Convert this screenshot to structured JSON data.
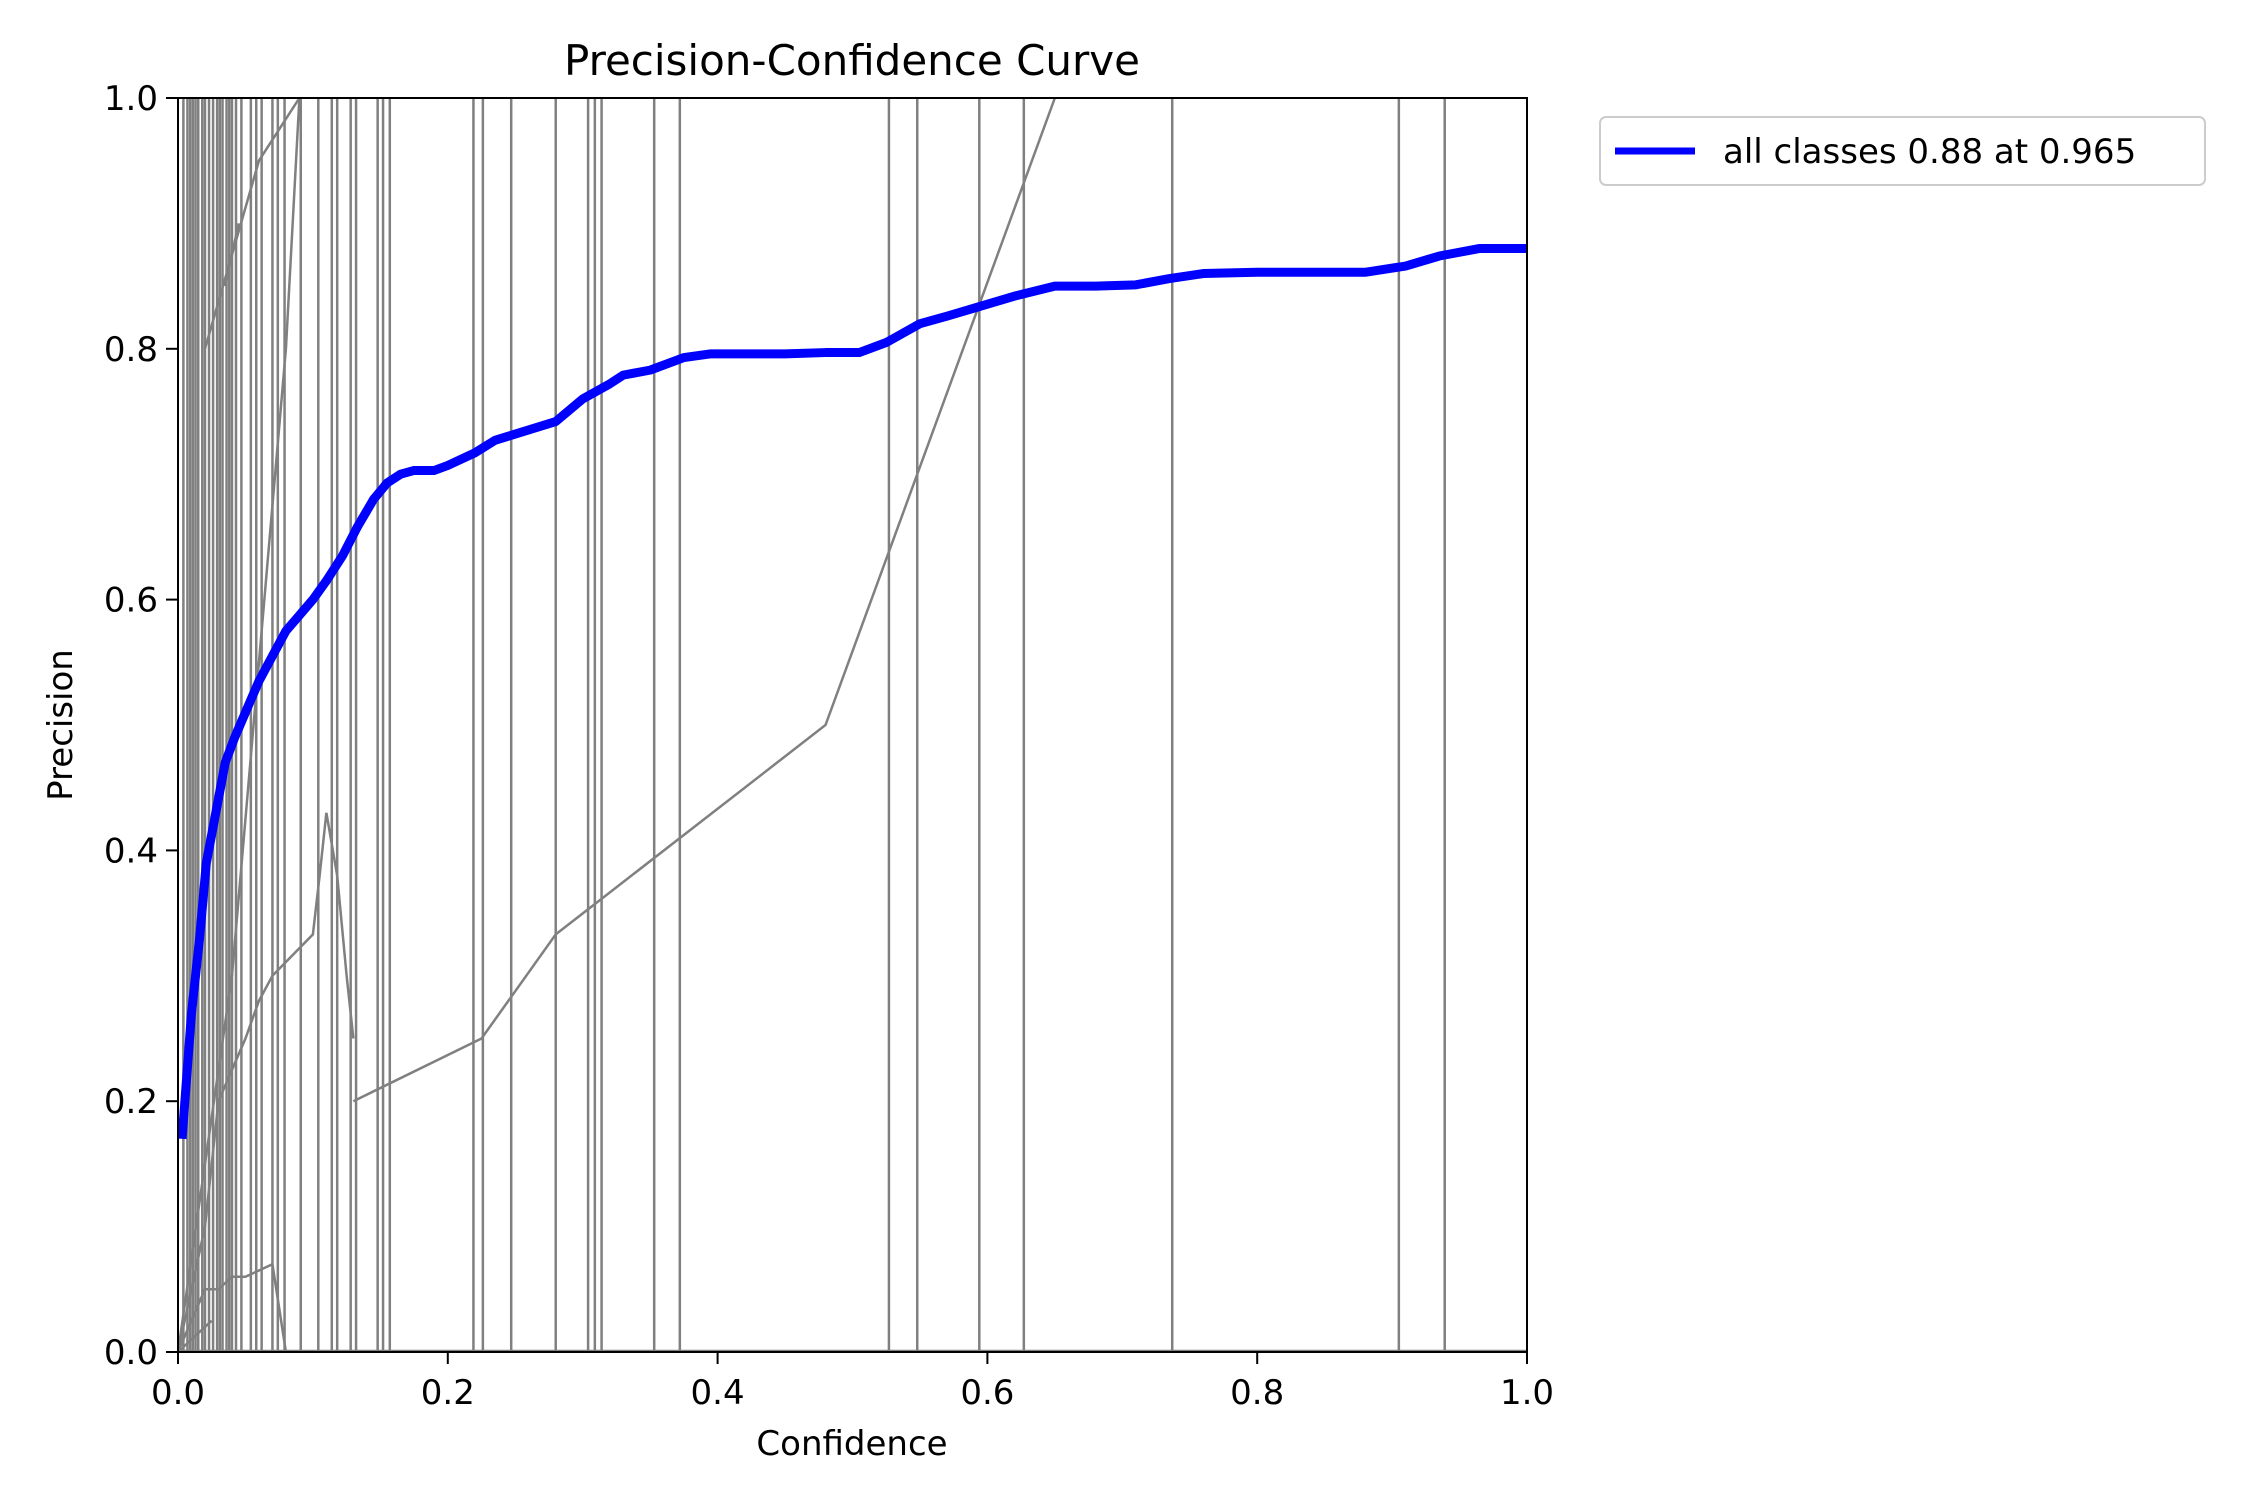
{
  "chart_data": {
    "type": "line",
    "title": "Precision-Confidence Curve",
    "xlabel": "Confidence",
    "ylabel": "Precision",
    "xlim": [
      0.0,
      1.0
    ],
    "ylim": [
      0.0,
      1.0
    ],
    "x_ticks": [
      "0.0",
      "0.2",
      "0.4",
      "0.6",
      "0.8",
      "1.0"
    ],
    "y_ticks": [
      "0.0",
      "0.2",
      "0.4",
      "0.6",
      "0.8",
      "1.0"
    ],
    "grid": false,
    "legend_position": "outside-top-right",
    "colors": {
      "main": "#0000ff",
      "per_class": "#808080"
    },
    "series": [
      {
        "name": "all classes 0.88 at 0.965",
        "color": "#0000ff",
        "x": [
          0.003,
          0.01,
          0.016,
          0.021,
          0.028,
          0.035,
          0.042,
          0.05,
          0.06,
          0.07,
          0.08,
          0.088,
          0.1,
          0.11,
          0.122,
          0.133,
          0.145,
          0.155,
          0.165,
          0.175,
          0.19,
          0.2,
          0.22,
          0.235,
          0.25,
          0.265,
          0.28,
          0.3,
          0.32,
          0.33,
          0.35,
          0.375,
          0.395,
          0.42,
          0.45,
          0.48,
          0.505,
          0.525,
          0.55,
          0.57,
          0.595,
          0.62,
          0.65,
          0.68,
          0.71,
          0.735,
          0.76,
          0.8,
          0.84,
          0.88,
          0.91,
          0.935,
          0.965,
          1.0
        ],
        "y": [
          0.17,
          0.27,
          0.33,
          0.39,
          0.43,
          0.47,
          0.49,
          0.51,
          0.535,
          0.555,
          0.575,
          0.585,
          0.6,
          0.615,
          0.635,
          0.658,
          0.68,
          0.693,
          0.7,
          0.703,
          0.703,
          0.707,
          0.717,
          0.727,
          0.732,
          0.737,
          0.742,
          0.76,
          0.772,
          0.779,
          0.783,
          0.793,
          0.796,
          0.796,
          0.796,
          0.797,
          0.797,
          0.805,
          0.82,
          0.826,
          0.834,
          0.842,
          0.85,
          0.85,
          0.851,
          0.856,
          0.86,
          0.861,
          0.861,
          0.861,
          0.866,
          0.874,
          0.88,
          0.88
        ]
      }
    ],
    "per_class_vertical_x": [
      0.004,
      0.007,
      0.009,
      0.011,
      0.013,
      0.015,
      0.018,
      0.02,
      0.023,
      0.026,
      0.029,
      0.031,
      0.033,
      0.036,
      0.038,
      0.04,
      0.043,
      0.047,
      0.054,
      0.058,
      0.062,
      0.07,
      0.074,
      0.079,
      0.091,
      0.104,
      0.114,
      0.118,
      0.128,
      0.132,
      0.148,
      0.152,
      0.157,
      0.219,
      0.226,
      0.247,
      0.28,
      0.304,
      0.309,
      0.314,
      0.353,
      0.372,
      0.527,
      0.548,
      0.594,
      0.627,
      0.737,
      0.905,
      0.939
    ],
    "per_class_curves": [
      {
        "x": [
          0.0,
          0.02,
          0.03,
          0.04,
          0.05,
          0.06,
          0.07,
          0.08
        ],
        "y": [
          0.0,
          0.05,
          0.05,
          0.06,
          0.06,
          0.065,
          0.07,
          0.0
        ]
      },
      {
        "x": [
          0.0,
          0.02,
          0.03,
          0.05,
          0.06,
          0.07,
          0.1,
          0.105,
          0.11,
          0.118,
          0.125,
          0.13
        ],
        "y": [
          0.0,
          0.1,
          0.2,
          0.25,
          0.28,
          0.3,
          0.333,
          0.38,
          0.43,
          0.38,
          0.3,
          0.25
        ]
      },
      {
        "x": [
          0.13,
          0.225,
          0.28,
          0.48,
          0.65
        ],
        "y": [
          0.2,
          0.25,
          0.333,
          0.5,
          1.0
        ]
      },
      {
        "x": [
          0.0,
          0.04,
          0.08,
          0.09
        ],
        "y": [
          0.0,
          0.3,
          0.8,
          1.0
        ]
      },
      {
        "x": [
          0.02,
          0.06,
          0.09
        ],
        "y": [
          0.8,
          0.95,
          1.0
        ]
      },
      {
        "x": [
          0.0,
          0.025
        ],
        "y": [
          0.0,
          0.025
        ]
      },
      {
        "x": [
          0.035,
          0.045
        ],
        "y": [
          0.85,
          0.9
        ]
      }
    ]
  }
}
